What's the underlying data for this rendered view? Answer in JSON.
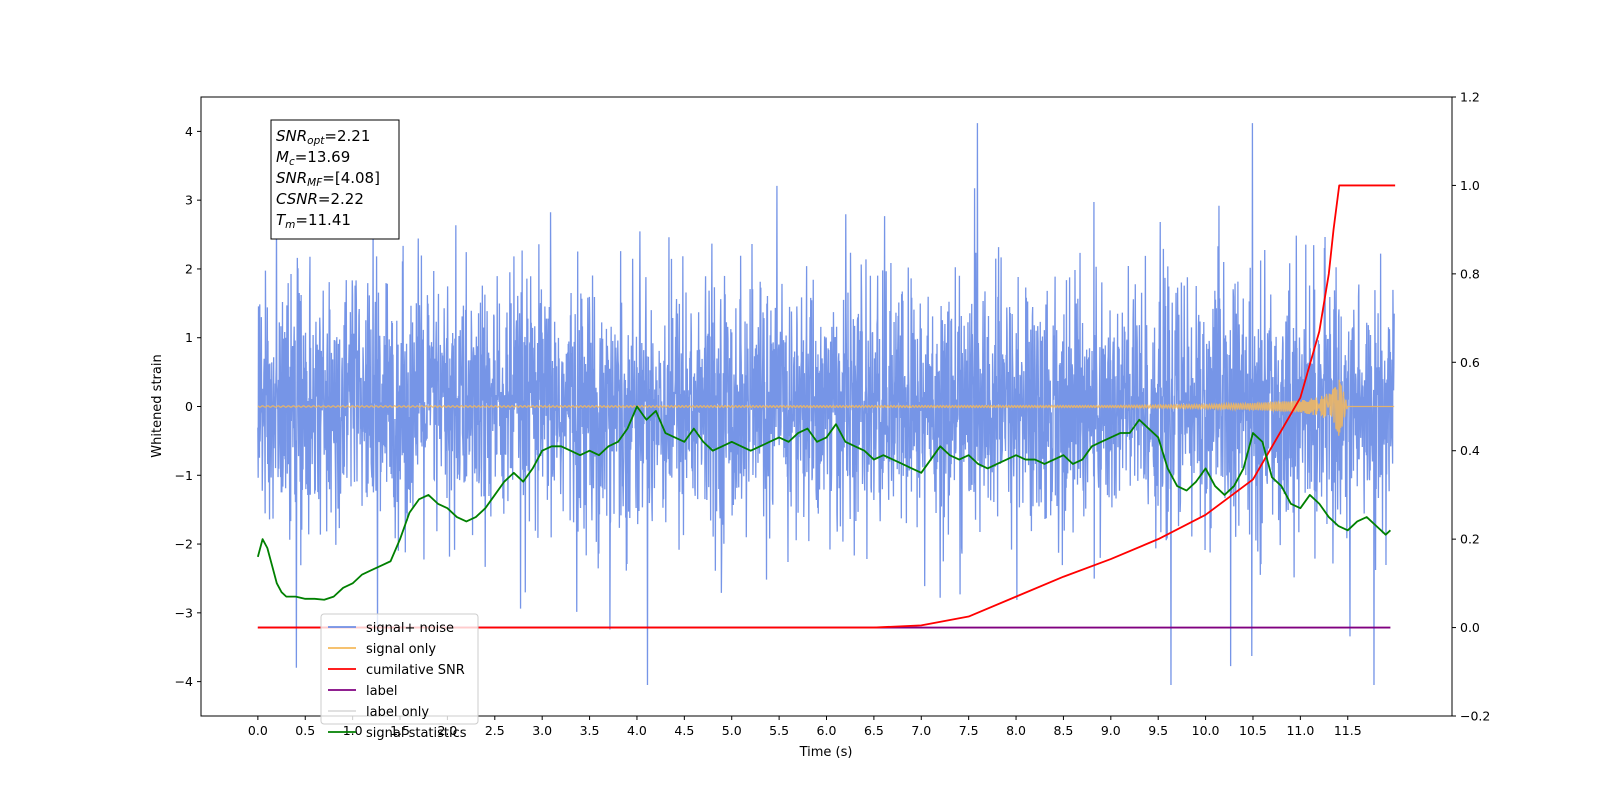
{
  "chart_data": {
    "type": "line",
    "xlabel": "Time (s)",
    "ylabel_left": "Whitened strain",
    "ylabel_right": "",
    "xlim": [
      -0.6,
      12.6
    ],
    "ylim_left": [
      -4.5,
      4.5
    ],
    "ylim_right": [
      -0.2,
      1.2
    ],
    "x_ticks": [
      0.0,
      0.5,
      1.0,
      1.5,
      2.0,
      2.5,
      3.0,
      3.5,
      4.0,
      4.5,
      5.0,
      5.5,
      6.0,
      6.5,
      7.0,
      7.5,
      8.0,
      8.5,
      9.0,
      9.5,
      10.0,
      10.5,
      11.0,
      11.5
    ],
    "x_tick_labels": [
      "0.0",
      "0.5",
      "1.0",
      "1.5",
      "2.0",
      "2.5",
      "3.0",
      "3.5",
      "4.0",
      "4.5",
      "5.0",
      "5.5",
      "6.0",
      "6.5",
      "7.0",
      "7.5",
      "8.0",
      "8.5",
      "9.0",
      "9.5",
      "10.0",
      "10.5",
      "11.0",
      "11.5"
    ],
    "y_ticks_left": [
      -4,
      -3,
      -2,
      -1,
      0,
      1,
      2,
      3,
      4
    ],
    "y_tick_labels_left": [
      "−4",
      "−3",
      "−2",
      "−1",
      "0",
      "1",
      "2",
      "3",
      "4"
    ],
    "y_ticks_right": [
      -0.2,
      0.0,
      0.2,
      0.4,
      0.6,
      0.8,
      1.0,
      1.2
    ],
    "y_tick_labels_right": [
      "−0.2",
      "0.0",
      "0.2",
      "0.4",
      "0.6",
      "0.8",
      "1.0",
      "1.2"
    ],
    "grid": false,
    "legend_position": "lower-left",
    "info_box": [
      {
        "base": "SNR",
        "sub": "opt",
        "value": "=2.21"
      },
      {
        "base": "M",
        "sub": "c",
        "value": "=13.69"
      },
      {
        "base": "SNR",
        "sub": "MF",
        "value": "=[4.08]"
      },
      {
        "base": "CSNR",
        "sub": "",
        "value": "=2.22"
      },
      {
        "base": "T",
        "sub": "m",
        "value": "=11.41"
      }
    ],
    "series": [
      {
        "name": "signal+ noise",
        "color": "#6f8fe6",
        "axis": "left",
        "description_values": {
          "mean": 0.0,
          "std": 0.9,
          "x_range": [
            0.0,
            11.99
          ]
        }
      },
      {
        "name": "signal only",
        "color": "#f5b95c",
        "axis": "left",
        "x": [
          0.0,
          9.0,
          10.0,
          10.5,
          11.0,
          11.2,
          11.3,
          11.35,
          11.38,
          11.4,
          11.41,
          11.5,
          12.0
        ],
        "envelope": [
          0.01,
          0.015,
          0.03,
          0.05,
          0.09,
          0.14,
          0.2,
          0.26,
          0.33,
          0.4,
          0.45,
          0.0,
          0.0
        ]
      },
      {
        "name": "cumilative SNR",
        "color": "#ff0000",
        "axis": "right",
        "x": [
          0.0,
          6.5,
          7.0,
          7.5,
          8.0,
          8.5,
          9.0,
          9.5,
          10.0,
          10.5,
          11.0,
          11.2,
          11.3,
          11.35,
          11.41,
          12.0
        ],
        "y": [
          0.0,
          0.0,
          0.005,
          0.025,
          0.07,
          0.115,
          0.155,
          0.2,
          0.255,
          0.335,
          0.52,
          0.67,
          0.8,
          0.9,
          1.0,
          1.0
        ]
      },
      {
        "name": "label",
        "color": "#800080",
        "axis": "right",
        "x": [
          0.0,
          11.95
        ],
        "y": [
          0.0,
          0.0
        ]
      },
      {
        "name": "label only",
        "color": "#dddddd",
        "axis": "right",
        "x": [],
        "y": []
      },
      {
        "name": "signal statistics",
        "color": "#008000",
        "axis": "right",
        "x": [
          0.0,
          0.05,
          0.1,
          0.15,
          0.2,
          0.25,
          0.3,
          0.4,
          0.5,
          0.6,
          0.7,
          0.8,
          0.9,
          1.0,
          1.1,
          1.2,
          1.3,
          1.4,
          1.5,
          1.6,
          1.7,
          1.8,
          1.9,
          2.0,
          2.1,
          2.2,
          2.3,
          2.4,
          2.5,
          2.6,
          2.7,
          2.8,
          2.9,
          3.0,
          3.1,
          3.2,
          3.3,
          3.4,
          3.5,
          3.6,
          3.7,
          3.8,
          3.9,
          4.0,
          4.1,
          4.2,
          4.3,
          4.4,
          4.5,
          4.6,
          4.7,
          4.8,
          4.9,
          5.0,
          5.1,
          5.2,
          5.3,
          5.4,
          5.5,
          5.6,
          5.7,
          5.8,
          5.9,
          6.0,
          6.1,
          6.2,
          6.3,
          6.4,
          6.5,
          6.6,
          6.7,
          6.8,
          6.9,
          7.0,
          7.1,
          7.2,
          7.3,
          7.4,
          7.5,
          7.6,
          7.7,
          7.8,
          7.9,
          8.0,
          8.1,
          8.2,
          8.3,
          8.4,
          8.5,
          8.6,
          8.7,
          8.8,
          8.9,
          9.0,
          9.1,
          9.2,
          9.3,
          9.4,
          9.5,
          9.6,
          9.7,
          9.8,
          9.9,
          10.0,
          10.1,
          10.2,
          10.3,
          10.4,
          10.5,
          10.6,
          10.7,
          10.8,
          10.9,
          11.0,
          11.1,
          11.2,
          11.3,
          11.4,
          11.5,
          11.6,
          11.7,
          11.8,
          11.9,
          11.95
        ],
        "y": [
          0.16,
          0.2,
          0.18,
          0.14,
          0.1,
          0.08,
          0.07,
          0.07,
          0.065,
          0.065,
          0.063,
          0.07,
          0.09,
          0.1,
          0.12,
          0.13,
          0.14,
          0.15,
          0.2,
          0.26,
          0.29,
          0.3,
          0.28,
          0.27,
          0.25,
          0.24,
          0.25,
          0.27,
          0.3,
          0.33,
          0.35,
          0.33,
          0.36,
          0.4,
          0.41,
          0.41,
          0.4,
          0.39,
          0.4,
          0.39,
          0.41,
          0.42,
          0.45,
          0.5,
          0.47,
          0.49,
          0.44,
          0.43,
          0.42,
          0.45,
          0.42,
          0.4,
          0.41,
          0.42,
          0.41,
          0.4,
          0.41,
          0.42,
          0.43,
          0.42,
          0.44,
          0.45,
          0.42,
          0.43,
          0.46,
          0.42,
          0.41,
          0.4,
          0.38,
          0.39,
          0.38,
          0.37,
          0.36,
          0.35,
          0.38,
          0.41,
          0.39,
          0.38,
          0.39,
          0.37,
          0.36,
          0.37,
          0.38,
          0.39,
          0.38,
          0.38,
          0.37,
          0.38,
          0.39,
          0.37,
          0.38,
          0.41,
          0.42,
          0.43,
          0.44,
          0.44,
          0.47,
          0.45,
          0.43,
          0.36,
          0.32,
          0.31,
          0.33,
          0.36,
          0.32,
          0.3,
          0.32,
          0.36,
          0.44,
          0.42,
          0.34,
          0.32,
          0.28,
          0.27,
          0.3,
          0.28,
          0.25,
          0.23,
          0.22,
          0.24,
          0.25,
          0.23,
          0.21,
          0.22
        ]
      }
    ]
  }
}
